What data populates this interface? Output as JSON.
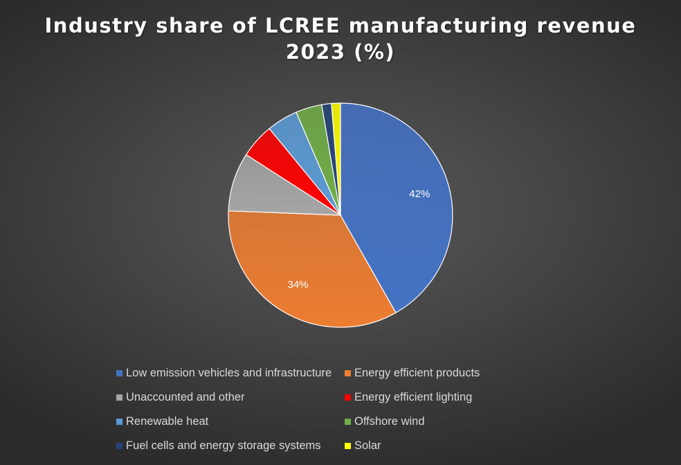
{
  "chart_data": {
    "type": "pie",
    "title_lines": [
      "Industry share of LCREE manufacturing revenue",
      "2023 (%)"
    ],
    "slices": [
      {
        "name": "Low emission vehicles and infrastructure",
        "value": 42,
        "color": "#4472c4",
        "label": "42%"
      },
      {
        "name": "Energy efficient products",
        "value": 34,
        "color": "#ed7d31",
        "label": "34%"
      },
      {
        "name": "Unaccounted and other",
        "value": 8.5,
        "color": "#a5a5a5",
        "label": ""
      },
      {
        "name": "Energy efficient lighting",
        "value": 5,
        "color": "#ff0000",
        "label": ""
      },
      {
        "name": "Renewable heat",
        "value": 4.5,
        "color": "#5b9bd5",
        "label": ""
      },
      {
        "name": "Offshore wind",
        "value": 3.8,
        "color": "#70ad47",
        "label": ""
      },
      {
        "name": "Fuel cells and energy storage systems",
        "value": 1.4,
        "color": "#264478",
        "label": ""
      },
      {
        "name": "Solar",
        "value": 1.3,
        "color": "#ffff00",
        "label": ""
      }
    ],
    "legend_position": "bottom"
  }
}
